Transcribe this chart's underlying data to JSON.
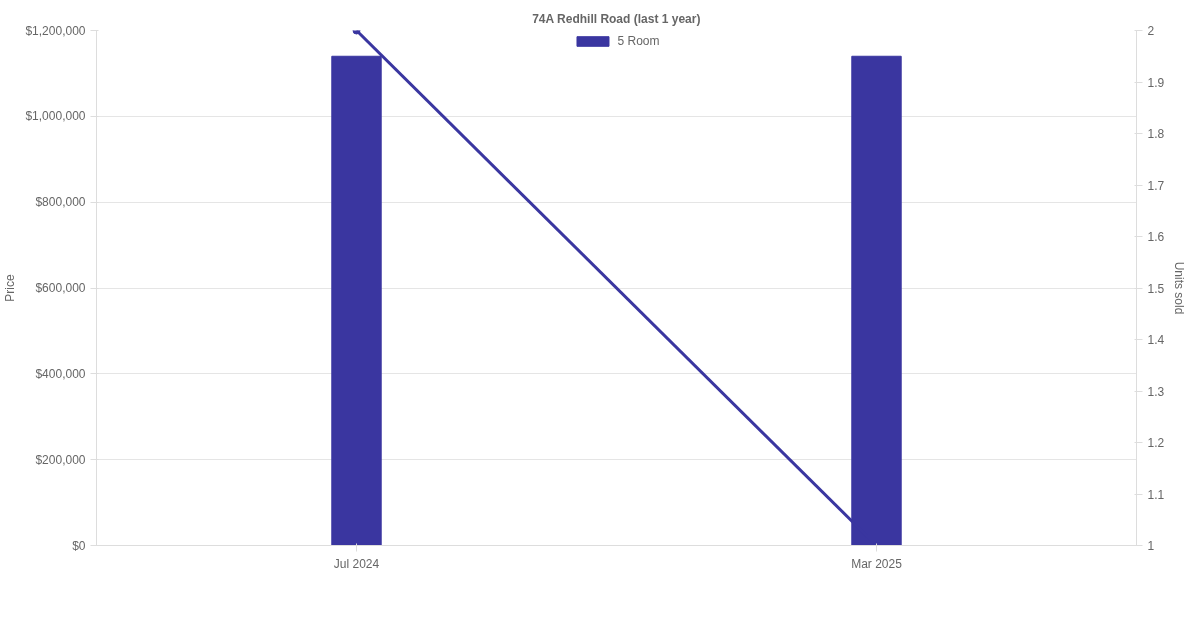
{
  "chart_data": {
    "type": "bar",
    "title": "74A Redhill Road (last 1 year)",
    "ylabel": "Price",
    "y2label": "Units sold",
    "categories": [
      "Jul 2024",
      "Mar 2025"
    ],
    "series": [
      {
        "name": "5 Room",
        "color": "#3a36a0",
        "values": [
          1140000,
          1140000
        ]
      },
      {
        "type": "line",
        "axis": "y2",
        "color": "#3a36a0",
        "marker": "circle",
        "values": [
          2,
          1
        ]
      }
    ],
    "ylim": [
      0,
      1200000
    ],
    "yticks": [
      {
        "value": 0,
        "label": "$0"
      },
      {
        "value": 200000,
        "label": "$200,000"
      },
      {
        "value": 400000,
        "label": "$400,000"
      },
      {
        "value": 600000,
        "label": "$600,000"
      },
      {
        "value": 800000,
        "label": "$800,000"
      },
      {
        "value": 1000000,
        "label": "$1,000,000"
      },
      {
        "value": 1200000,
        "label": "$1,200,000"
      }
    ],
    "y2lim": [
      1,
      2
    ],
    "y2ticks": [
      1,
      1.1,
      1.2,
      1.3,
      1.4,
      1.5,
      1.6,
      1.7,
      1.8,
      1.9,
      2
    ],
    "grid": "y",
    "legend": "top"
  }
}
